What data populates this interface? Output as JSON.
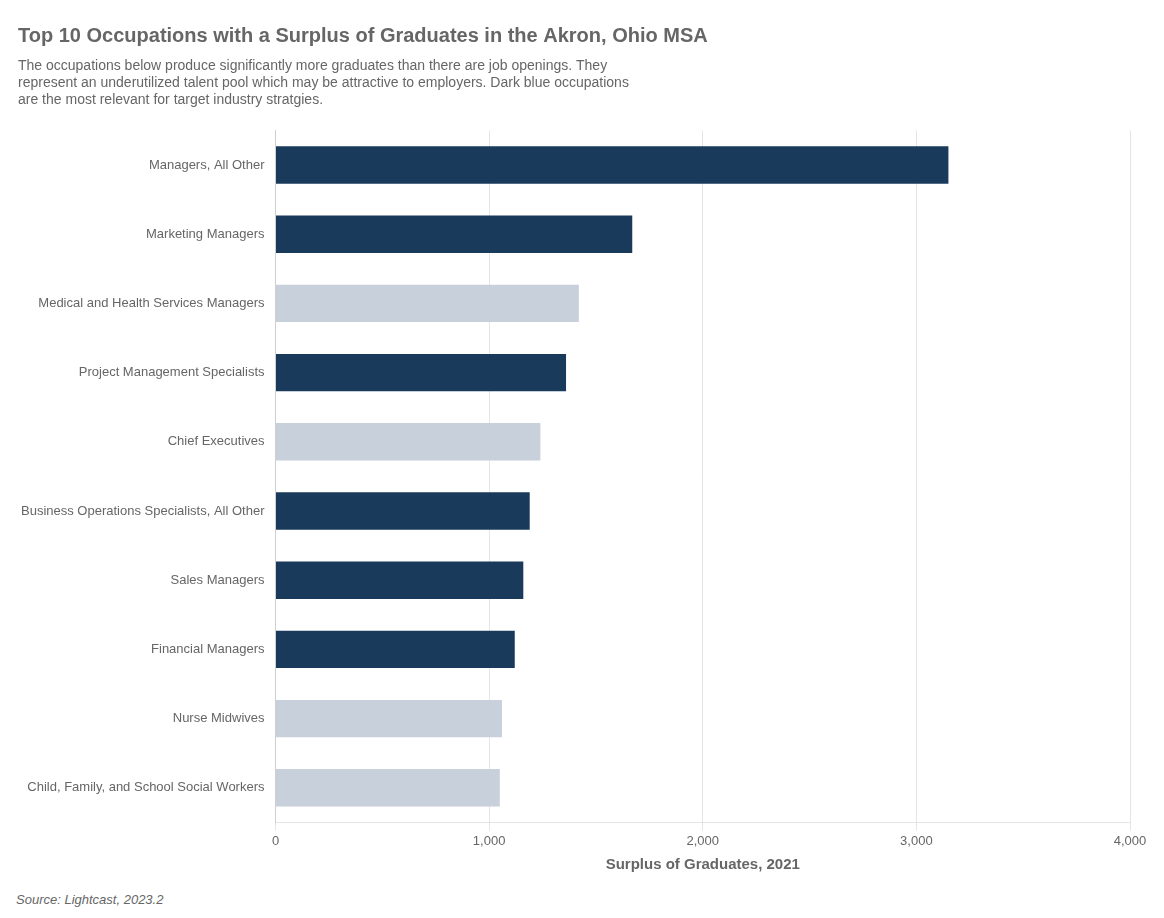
{
  "chart_data": {
    "type": "bar",
    "orientation": "horizontal",
    "title": "Top 10 Occupations with a Surplus of Graduates in the Akron, Ohio MSA",
    "subtitle": "The occupations below produce significantly more graduates than there are job openings. They\nrepresent an underutilized talent pool which may be attractive to employers. Dark blue occupations\nare the most relevant for target industry stratgies.",
    "categories": [
      "Child, Family, and School Social Workers",
      "Nurse Midwives",
      "Financial Managers",
      "Sales Managers",
      "Business Operations Specialists, All Other",
      "Chief Executives",
      "Project Management Specialists",
      "Medical and Health Services Managers",
      "Marketing Managers",
      "Managers, All Other"
    ],
    "values": [
      1050,
      1060,
      1120,
      1160,
      1190,
      1240,
      1360,
      1420,
      1670,
      3150
    ],
    "colors": [
      "#c8d0dc",
      "#c8d0dc",
      "#1a3a5c",
      "#1a3a5c",
      "#1a3a5c",
      "#c8d0dc",
      "#1a3a5c",
      "#c8d0dc",
      "#1a3a5c",
      "#1a3a5c"
    ],
    "xlabel": "Surplus of Graduates, 2021",
    "source": "Source: Lightcast, 2023.2",
    "xlim": [
      0,
      4000
    ],
    "xticks": [
      0,
      {
        "value": 1000,
        "label": "1,000"
      },
      {
        "value": 2000,
        "label": "2,000"
      },
      {
        "value": 3000,
        "label": "3,000"
      },
      {
        "value": 4000,
        "label": "4,000"
      }
    ],
    "grid": "x"
  }
}
